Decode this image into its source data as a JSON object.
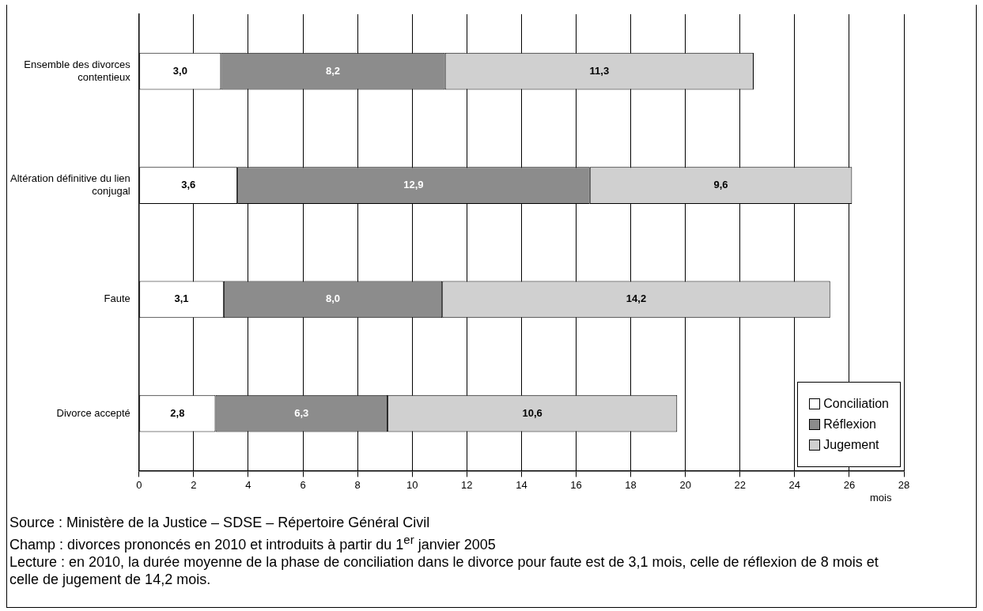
{
  "chart_data": {
    "type": "bar",
    "orientation": "horizontal",
    "stacked": true,
    "categories": [
      "Ensemble des divorces contentieux",
      "Altération définitive du lien conjugal",
      "Faute",
      "Divorce accepté"
    ],
    "series": [
      {
        "name": "Conciliation",
        "color": "#ffffff",
        "values": [
          3.0,
          3.6,
          3.1,
          2.8
        ],
        "value_labels": [
          "3,0",
          "3,6",
          "3,1",
          "2,8"
        ]
      },
      {
        "name": "Réflexion",
        "color": "#8c8c8c",
        "values": [
          8.2,
          12.9,
          8.0,
          6.3
        ],
        "value_labels": [
          "8,2",
          "12,9",
          "8,0",
          "6,3"
        ]
      },
      {
        "name": "Jugement",
        "color": "#d0d0d0",
        "values": [
          11.3,
          9.6,
          14.2,
          10.6
        ],
        "value_labels": [
          "11,3",
          "9,6",
          "14,2",
          "10,6"
        ]
      }
    ],
    "xlim": [
      0,
      28
    ],
    "xticks": [
      0,
      2,
      4,
      6,
      8,
      10,
      12,
      14,
      16,
      18,
      20,
      22,
      24,
      26,
      28
    ],
    "xlabel": "mois",
    "grid": "x",
    "legend": "bottom right",
    "annotations": [
      "Source : Ministère de la Justice – SDSE – Répertoire Général Civil",
      "Champ : divorces prononcés en 2010 et introduits à partir du 1$^{er}$ janvier 2005",
      "Lecture : en 2010, la durée moyenne de la phase de conciliation dans le divorce pour faute est de 3,1 mois, celle de réflexion de 8 mois et celle de jugement de 14,2 mois."
    ]
  }
}
